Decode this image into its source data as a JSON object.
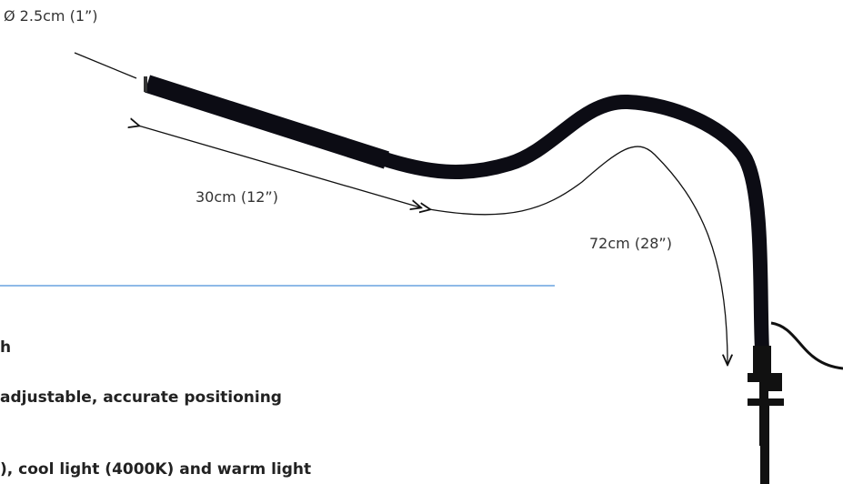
{
  "annotations": {
    "diameter": "Ø 2.5cm (1”)",
    "head_length": "30cm (12”)",
    "arm_length": "72cm (28”)"
  },
  "features": [
    "h",
    "adjustable, accurate positioning",
    "), cool light (4000K) and warm light"
  ]
}
